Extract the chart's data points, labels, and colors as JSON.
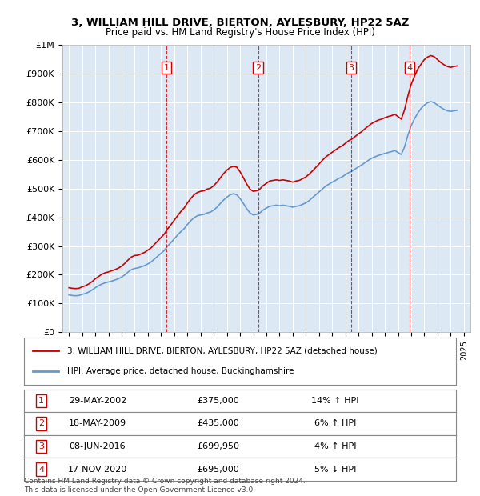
{
  "title": "3, WILLIAM HILL DRIVE, BIERTON, AYLESBURY, HP22 5AZ",
  "subtitle": "Price paid vs. HM Land Registry's House Price Index (HPI)",
  "hpi_label": "HPI: Average price, detached house, Buckinghamshire",
  "price_label": "3, WILLIAM HILL DRIVE, BIERTON, AYLESBURY, HP22 5AZ (detached house)",
  "background_color": "#dce9f5",
  "plot_bg_color": "#dce9f5",
  "red_color": "#cc0000",
  "blue_color": "#6699cc",
  "sales": [
    {
      "num": 1,
      "date": "29-MAY-2002",
      "price": 375000,
      "pct": "14%",
      "dir": "↑"
    },
    {
      "num": 2,
      "date": "18-MAY-2009",
      "price": 435000,
      "pct": "6%",
      "dir": "↑"
    },
    {
      "num": 3,
      "date": "08-JUN-2016",
      "price": 699950,
      "pct": "4%",
      "dir": "↑"
    },
    {
      "num": 4,
      "date": "17-NOV-2020",
      "price": 695000,
      "pct": "5%",
      "dir": "↓"
    }
  ],
  "sale_years": [
    2002.41,
    2009.38,
    2016.44,
    2020.88
  ],
  "sale_prices": [
    375000,
    435000,
    699950,
    695000
  ],
  "hpi_years": [
    1995.0,
    1995.25,
    1995.5,
    1995.75,
    1996.0,
    1996.25,
    1996.5,
    1996.75,
    1997.0,
    1997.25,
    1997.5,
    1997.75,
    1998.0,
    1998.25,
    1998.5,
    1998.75,
    1999.0,
    1999.25,
    1999.5,
    1999.75,
    2000.0,
    2000.25,
    2000.5,
    2000.75,
    2001.0,
    2001.25,
    2001.5,
    2001.75,
    2002.0,
    2002.25,
    2002.5,
    2002.75,
    2003.0,
    2003.25,
    2003.5,
    2003.75,
    2004.0,
    2004.25,
    2004.5,
    2004.75,
    2005.0,
    2005.25,
    2005.5,
    2005.75,
    2006.0,
    2006.25,
    2006.5,
    2006.75,
    2007.0,
    2007.25,
    2007.5,
    2007.75,
    2008.0,
    2008.25,
    2008.5,
    2008.75,
    2009.0,
    2009.25,
    2009.5,
    2009.75,
    2010.0,
    2010.25,
    2010.5,
    2010.75,
    2011.0,
    2011.25,
    2011.5,
    2011.75,
    2012.0,
    2012.25,
    2012.5,
    2012.75,
    2013.0,
    2013.25,
    2013.5,
    2013.75,
    2014.0,
    2014.25,
    2014.5,
    2014.75,
    2015.0,
    2015.25,
    2015.5,
    2015.75,
    2016.0,
    2016.25,
    2016.5,
    2016.75,
    2017.0,
    2017.25,
    2017.5,
    2017.75,
    2018.0,
    2018.25,
    2018.5,
    2018.75,
    2019.0,
    2019.25,
    2019.5,
    2019.75,
    2020.0,
    2020.25,
    2020.5,
    2020.75,
    2021.0,
    2021.25,
    2021.5,
    2021.75,
    2022.0,
    2022.25,
    2022.5,
    2022.75,
    2023.0,
    2023.25,
    2023.5,
    2023.75,
    2024.0,
    2024.25,
    2024.5
  ],
  "hpi_values": [
    130000,
    128000,
    127000,
    128000,
    132000,
    135000,
    140000,
    147000,
    155000,
    162000,
    168000,
    172000,
    175000,
    178000,
    182000,
    186000,
    192000,
    200000,
    210000,
    218000,
    222000,
    224000,
    228000,
    232000,
    238000,
    245000,
    255000,
    265000,
    275000,
    285000,
    300000,
    312000,
    325000,
    338000,
    350000,
    360000,
    375000,
    388000,
    398000,
    405000,
    408000,
    410000,
    415000,
    418000,
    425000,
    435000,
    448000,
    460000,
    470000,
    478000,
    482000,
    478000,
    465000,
    448000,
    430000,
    415000,
    408000,
    410000,
    415000,
    425000,
    432000,
    438000,
    440000,
    442000,
    440000,
    442000,
    440000,
    438000,
    435000,
    438000,
    440000,
    445000,
    450000,
    458000,
    468000,
    478000,
    488000,
    498000,
    508000,
    515000,
    522000,
    528000,
    535000,
    540000,
    548000,
    555000,
    560000,
    568000,
    575000,
    582000,
    590000,
    598000,
    605000,
    610000,
    615000,
    618000,
    622000,
    625000,
    628000,
    632000,
    625000,
    618000,
    645000,
    685000,
    718000,
    742000,
    762000,
    778000,
    790000,
    798000,
    802000,
    798000,
    790000,
    782000,
    775000,
    770000,
    768000,
    770000,
    772000
  ],
  "price_years": [
    1995.0,
    1995.25,
    1995.5,
    1995.75,
    1996.0,
    1996.25,
    1996.5,
    1996.75,
    1997.0,
    1997.25,
    1997.5,
    1997.75,
    1998.0,
    1998.25,
    1998.5,
    1998.75,
    1999.0,
    1999.25,
    1999.5,
    1999.75,
    2000.0,
    2000.25,
    2000.5,
    2000.75,
    2001.0,
    2001.25,
    2001.5,
    2001.75,
    2002.0,
    2002.25,
    2002.5,
    2002.75,
    2003.0,
    2003.25,
    2003.5,
    2003.75,
    2004.0,
    2004.25,
    2004.5,
    2004.75,
    2005.0,
    2005.25,
    2005.5,
    2005.75,
    2006.0,
    2006.25,
    2006.5,
    2006.75,
    2007.0,
    2007.25,
    2007.5,
    2007.75,
    2008.0,
    2008.25,
    2008.5,
    2008.75,
    2009.0,
    2009.25,
    2009.5,
    2009.75,
    2010.0,
    2010.25,
    2010.5,
    2010.75,
    2011.0,
    2011.25,
    2011.5,
    2011.75,
    2012.0,
    2012.25,
    2012.5,
    2012.75,
    2013.0,
    2013.25,
    2013.5,
    2013.75,
    2014.0,
    2014.25,
    2014.5,
    2014.75,
    2015.0,
    2015.25,
    2015.5,
    2015.75,
    2016.0,
    2016.25,
    2016.5,
    2016.75,
    2017.0,
    2017.25,
    2017.5,
    2017.75,
    2018.0,
    2018.25,
    2018.5,
    2018.75,
    2019.0,
    2019.25,
    2019.5,
    2019.75,
    2020.0,
    2020.25,
    2020.5,
    2020.75,
    2021.0,
    2021.25,
    2021.5,
    2021.75,
    2022.0,
    2022.25,
    2022.5,
    2022.75,
    2023.0,
    2023.25,
    2023.5,
    2023.75,
    2024.0,
    2024.25,
    2024.5
  ],
  "price_values": [
    155000,
    153000,
    152000,
    153000,
    158000,
    162000,
    168000,
    176000,
    186000,
    194000,
    202000,
    207000,
    210000,
    214000,
    218000,
    223000,
    230000,
    240000,
    252000,
    262000,
    267000,
    268000,
    273000,
    278000,
    286000,
    294000,
    306000,
    318000,
    330000,
    342000,
    360000,
    374000,
    390000,
    405000,
    420000,
    432000,
    450000,
    465000,
    478000,
    486000,
    490000,
    492000,
    498000,
    501000,
    510000,
    522000,
    537000,
    552000,
    564000,
    573000,
    577000,
    574000,
    558000,
    538000,
    516000,
    498000,
    490000,
    492000,
    498000,
    510000,
    518000,
    526000,
    528000,
    530000,
    528000,
    530000,
    528000,
    526000,
    522000,
    526000,
    528000,
    534000,
    540000,
    550000,
    561000,
    573000,
    585000,
    598000,
    609000,
    618000,
    626000,
    634000,
    642000,
    648000,
    657000,
    666000,
    672000,
    681000,
    690000,
    698000,
    708000,
    717000,
    726000,
    732000,
    738000,
    741000,
    746000,
    750000,
    753000,
    758000,
    750000,
    741000,
    774000,
    822000,
    862000,
    890000,
    915000,
    932000,
    948000,
    957000,
    962000,
    958000,
    948000,
    938000,
    930000,
    924000,
    921000,
    924000,
    926000
  ],
  "ylim": [
    0,
    1000000
  ],
  "yticks": [
    0,
    100000,
    200000,
    300000,
    400000,
    500000,
    600000,
    700000,
    800000,
    900000,
    1000000
  ],
  "ytick_labels": [
    "£0",
    "£100K",
    "£200K",
    "£300K",
    "£400K",
    "£500K",
    "£600K",
    "£700K",
    "£800K",
    "£900K",
    "£1M"
  ],
  "xlim_start": 1994.5,
  "xlim_end": 2025.5,
  "footer": "Contains HM Land Registry data © Crown copyright and database right 2024.\nThis data is licensed under the Open Government Licence v3.0."
}
